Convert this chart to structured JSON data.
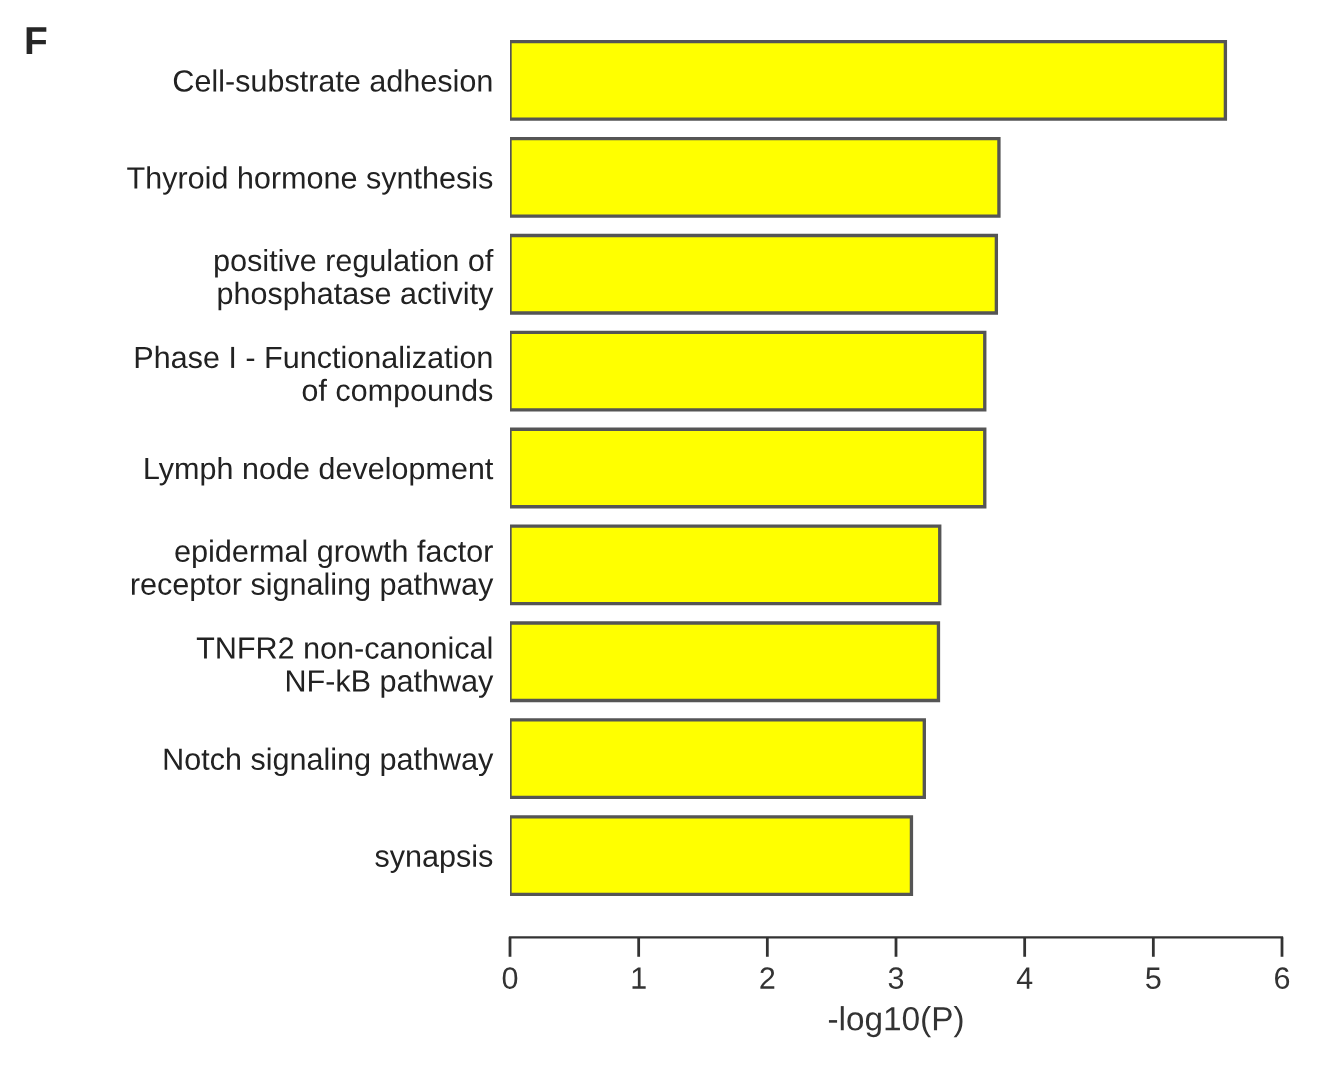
{
  "chart_data": {
    "type": "bar",
    "orientation": "horizontal",
    "xlabel": "-log10(P)",
    "annotations": [
      "F"
    ],
    "categories": [
      "Cell-substrate adhesion",
      "Thyroid hormone synthesis",
      "positive regulation of\nphosphatase activity",
      "Phase I - Functionalization\nof compounds",
      "Lymph node development",
      "epidermal growth factor\nreceptor signaling pathway",
      "TNFR2 non-canonical\nNF-kB pathway",
      "Notch signaling pathway",
      "synapsis"
    ],
    "values": [
      5.56,
      3.8,
      3.78,
      3.69,
      3.69,
      3.34,
      3.33,
      3.22,
      3.12
    ],
    "color": "#ffff00",
    "xlim": [
      0,
      6
    ],
    "xticks": [
      0,
      1,
      2,
      3,
      4,
      5,
      6
    ],
    "grid": false
  }
}
